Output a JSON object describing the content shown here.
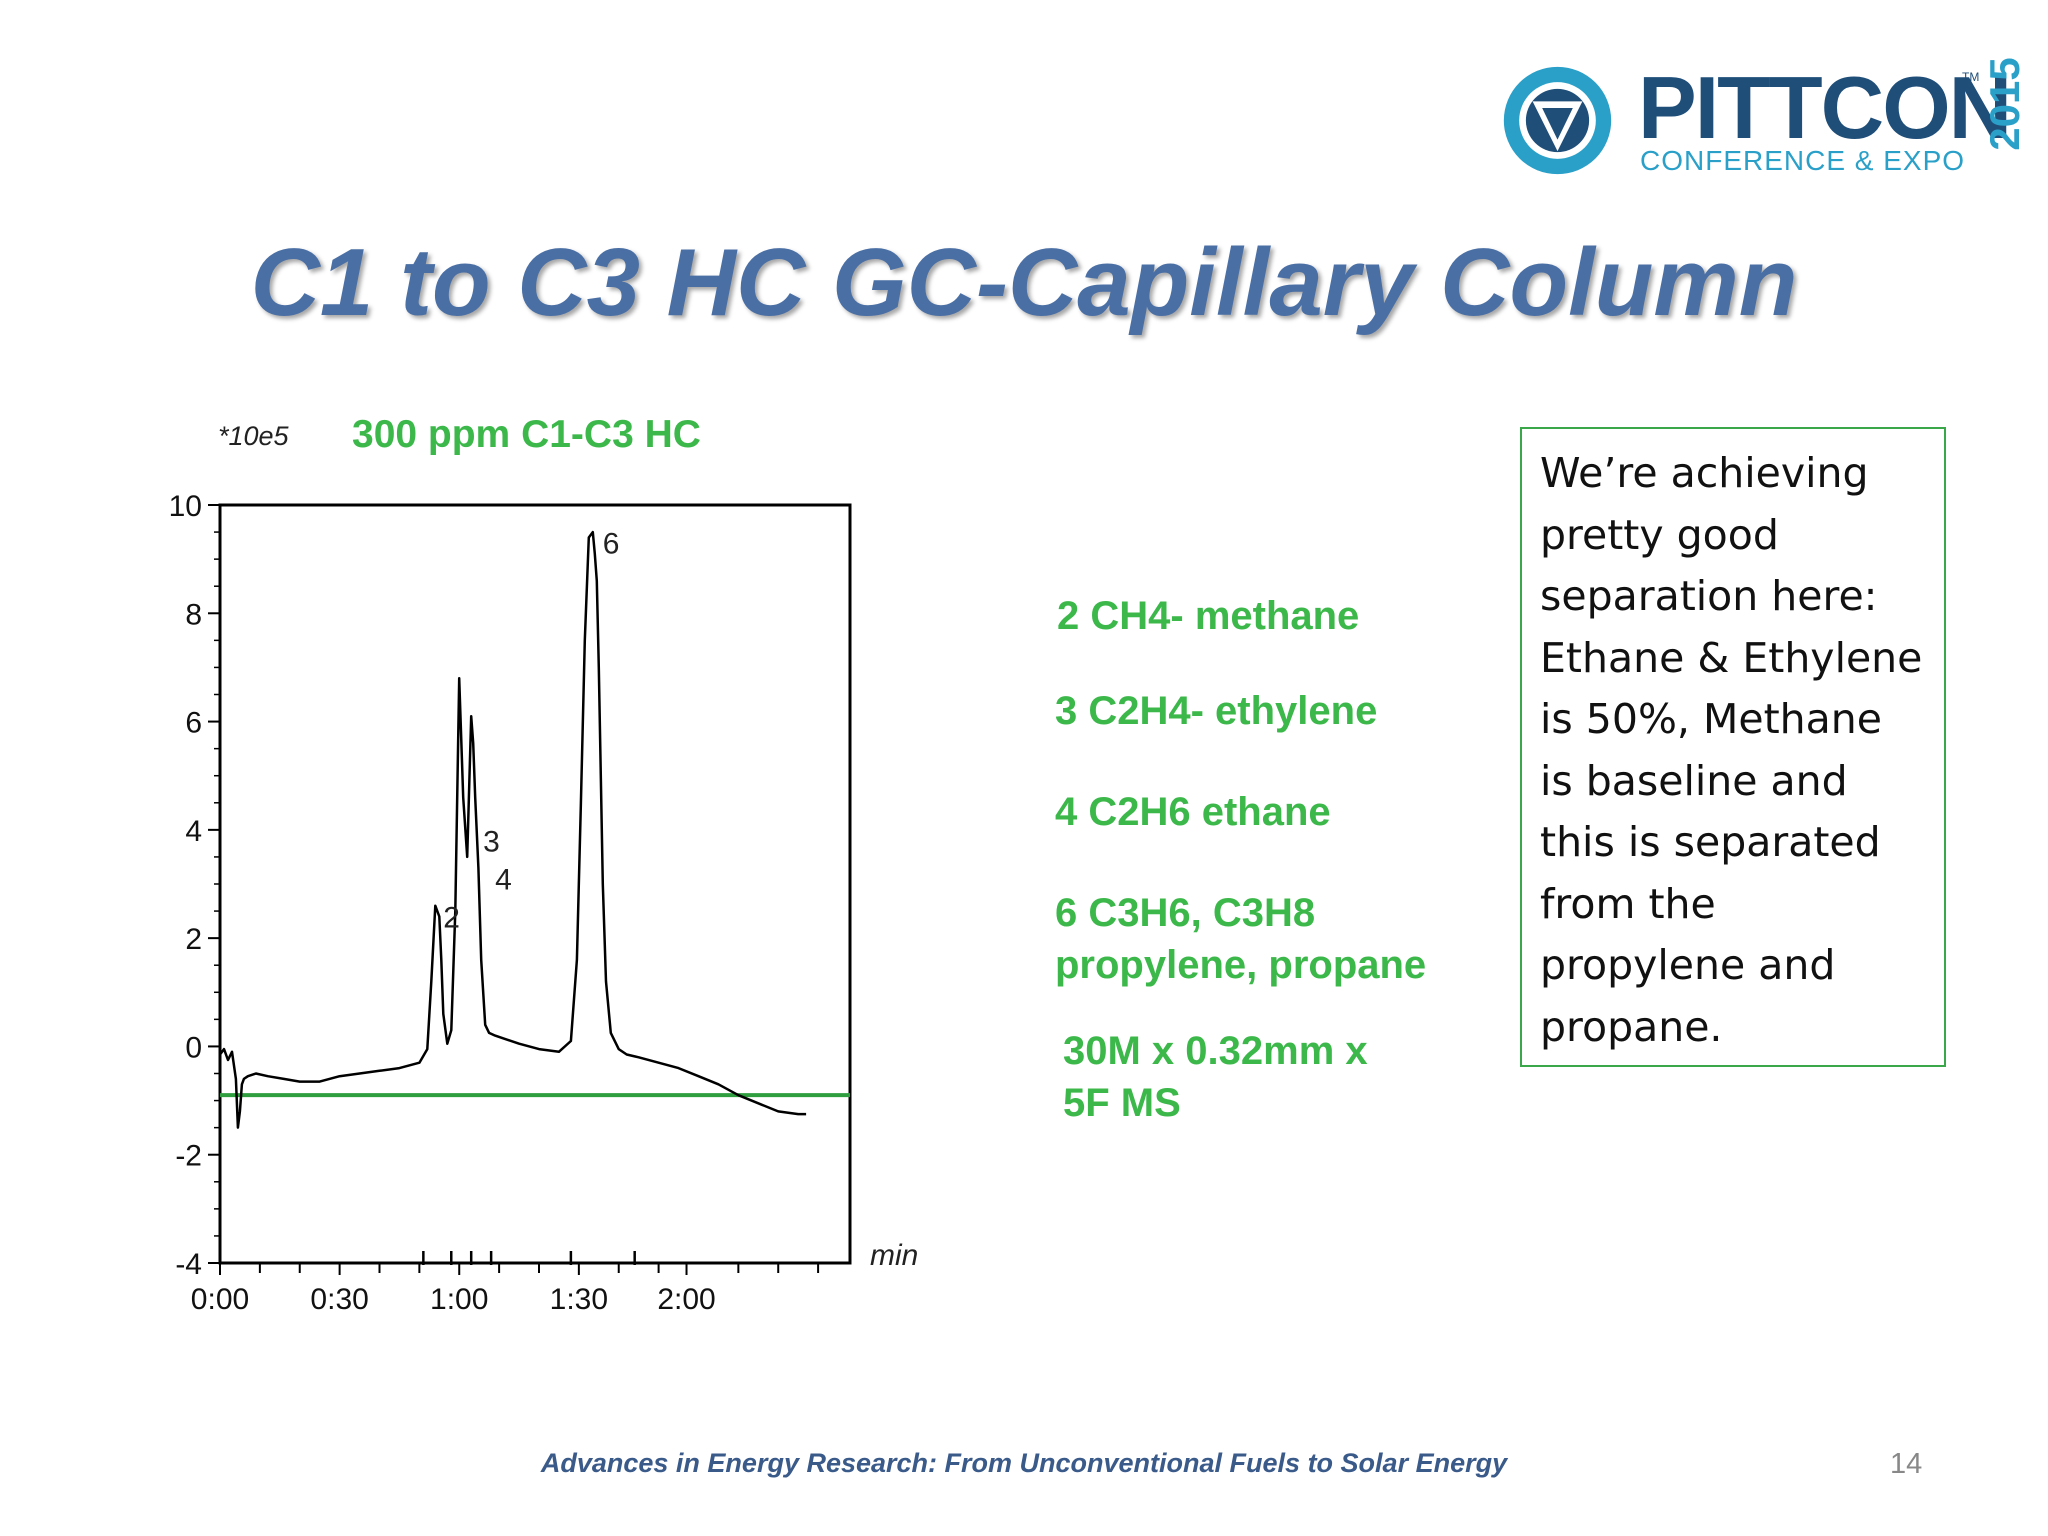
{
  "logo": {
    "name": "PITTCON",
    "tm": "TM",
    "subtitle": "CONFERENCE & EXPO",
    "year": "2015"
  },
  "slide": {
    "title": "C1 to C3 HC GC-Capillary Column",
    "footer": "Advances in Energy Research: From Unconventional Fuels to Solar Energy",
    "page_number": "14"
  },
  "legend": {
    "items": [
      "2  CH4- methane",
      "3 C2H4- ethylene",
      "4 C2H6 ethane",
      "6 C3H6, C3H8",
      "propylene, propane",
      "30M x 0.32mm x",
      "5F MS"
    ]
  },
  "note": {
    "text": "We’re achieving pretty good separation here: Ethane & Ethylene is 50%, Methane is baseline and this is separated from the propylene and propane."
  },
  "colors": {
    "title": "#4a6fa5",
    "legend_green": "#3cb84a",
    "baseline_green": "#2e9e3e",
    "trace": "#000000",
    "logo_blue": "#1f4e79",
    "logo_cyan": "#2aa0c9"
  },
  "chart_data": {
    "type": "line",
    "title": "300 ppm C1-C3 HC",
    "ylabel": "*10e5",
    "xlabel": "min",
    "xlim": [
      0,
      158
    ],
    "ylim": [
      -4,
      10
    ],
    "x_ticks": [
      "0:00",
      "0:30",
      "1:00",
      "1:30",
      "2:00"
    ],
    "x_tick_values": [
      0,
      30,
      60,
      90,
      117
    ],
    "y_ticks": [
      "10",
      "8",
      "6",
      "4",
      "2",
      "0",
      "-2",
      "-4"
    ],
    "y_tick_values": [
      10,
      8,
      6,
      4,
      2,
      0,
      -2,
      -4
    ],
    "grid": false,
    "series": [
      {
        "x": [
          0,
          1,
          2,
          3,
          4,
          4.5,
          5,
          5.5,
          6,
          7,
          9,
          12,
          16,
          20,
          25,
          30,
          35,
          40,
          45,
          50,
          52,
          53,
          54,
          55,
          55.5,
          56,
          57,
          58,
          59,
          60,
          61,
          62,
          62.5,
          63,
          63.5,
          64,
          64.8,
          65.5,
          66.5,
          67.5,
          69,
          71,
          75,
          80,
          85,
          88,
          89.5,
          90.5,
          91.5,
          92.5,
          93.5,
          94,
          94.5,
          95,
          95.5,
          96,
          96.8,
          98,
          100,
          102,
          105,
          110,
          115,
          120,
          125,
          130,
          135,
          140,
          145,
          147
        ],
        "y": [
          -0.15,
          -0.05,
          -0.25,
          -0.1,
          -0.6,
          -1.5,
          -1.2,
          -0.7,
          -0.6,
          -0.55,
          -0.5,
          -0.55,
          -0.6,
          -0.65,
          -0.65,
          -0.55,
          -0.5,
          -0.45,
          -0.4,
          -0.3,
          -0.05,
          1.2,
          2.6,
          2.4,
          1.6,
          0.6,
          0.05,
          0.3,
          2.5,
          6.8,
          4.6,
          3.5,
          4.8,
          6.1,
          5.6,
          4.6,
          3.3,
          1.6,
          0.4,
          0.25,
          0.2,
          0.15,
          0.05,
          -0.05,
          -0.1,
          0.1,
          1.6,
          4.5,
          7.5,
          9.4,
          9.5,
          9.1,
          8.6,
          7.0,
          5.0,
          3.0,
          1.2,
          0.25,
          -0.05,
          -0.15,
          -0.2,
          -0.3,
          -0.4,
          -0.55,
          -0.7,
          -0.9,
          -1.05,
          -1.2,
          -1.25,
          -1.25
        ]
      },
      {
        "x": [
          0,
          158
        ],
        "y": [
          -0.9,
          -0.9
        ]
      }
    ],
    "peak_labels": [
      {
        "label": "2",
        "x": 56,
        "y": 2.2
      },
      {
        "label": "3",
        "x": 66,
        "y": 3.6
      },
      {
        "label": "4",
        "x": 69,
        "y": 2.9
      },
      {
        "label": "6",
        "x": 96,
        "y": 9.1
      }
    ],
    "axis_ticks_minor_x": [
      10,
      20,
      40,
      50,
      70,
      80,
      100,
      110,
      130,
      140,
      150,
      160
    ],
    "axis_ticks_marked_x": [
      51,
      58,
      63,
      68,
      88,
      104
    ]
  }
}
